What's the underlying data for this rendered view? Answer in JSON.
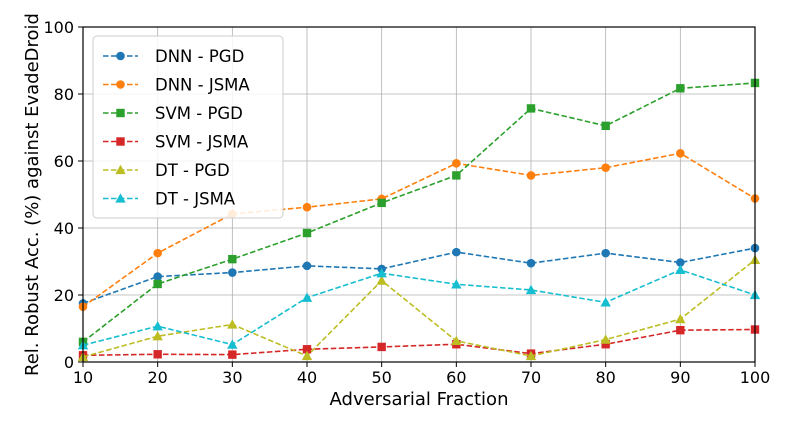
{
  "chart_data": {
    "type": "line",
    "title": "",
    "xlabel": "Adversarial Fraction",
    "ylabel": "Rel. Robust Acc. (%) against EvadeDroid",
    "x": [
      10,
      20,
      30,
      40,
      50,
      60,
      70,
      80,
      90,
      100
    ],
    "xlim": [
      10,
      100
    ],
    "ylim": [
      0,
      100
    ],
    "xticks": [
      "10",
      "20",
      "30",
      "40",
      "50",
      "60",
      "70",
      "80",
      "90",
      "100"
    ],
    "yticks": [
      "0",
      "20",
      "40",
      "60",
      "80",
      "100"
    ],
    "grid": true,
    "legend_position": "top-left",
    "series": [
      {
        "name": "DNN - PGD",
        "color": "#1f77b4",
        "marker": "circle",
        "values": [
          17.5,
          25.5,
          26.7,
          28.7,
          27.8,
          32.8,
          29.5,
          32.5,
          29.7,
          34.0
        ]
      },
      {
        "name": "DNN - JSMA",
        "color": "#ff7f0e",
        "marker": "circle",
        "values": [
          16.5,
          32.5,
          44.2,
          46.2,
          48.7,
          59.3,
          55.7,
          58.0,
          62.3,
          48.8
        ]
      },
      {
        "name": "SVM - PGD",
        "color": "#2ca02c",
        "marker": "square",
        "values": [
          6.0,
          23.3,
          30.7,
          38.5,
          47.5,
          55.7,
          75.7,
          70.5,
          81.7,
          83.3
        ]
      },
      {
        "name": "SVM - JSMA",
        "color": "#d62728",
        "marker": "square",
        "values": [
          2.0,
          2.3,
          2.2,
          3.8,
          4.5,
          5.3,
          2.5,
          5.3,
          9.5,
          9.7
        ]
      },
      {
        "name": "DT - PGD",
        "color": "#bcbd22",
        "marker": "triangle",
        "values": [
          1.5,
          7.7,
          11.2,
          1.8,
          24.3,
          6.3,
          1.8,
          6.7,
          12.8,
          30.5
        ]
      },
      {
        "name": "DT - JSMA",
        "color": "#17becf",
        "marker": "triangle",
        "values": [
          5.0,
          10.7,
          5.2,
          19.2,
          26.5,
          23.2,
          21.5,
          17.8,
          27.5,
          20.0
        ]
      }
    ]
  }
}
